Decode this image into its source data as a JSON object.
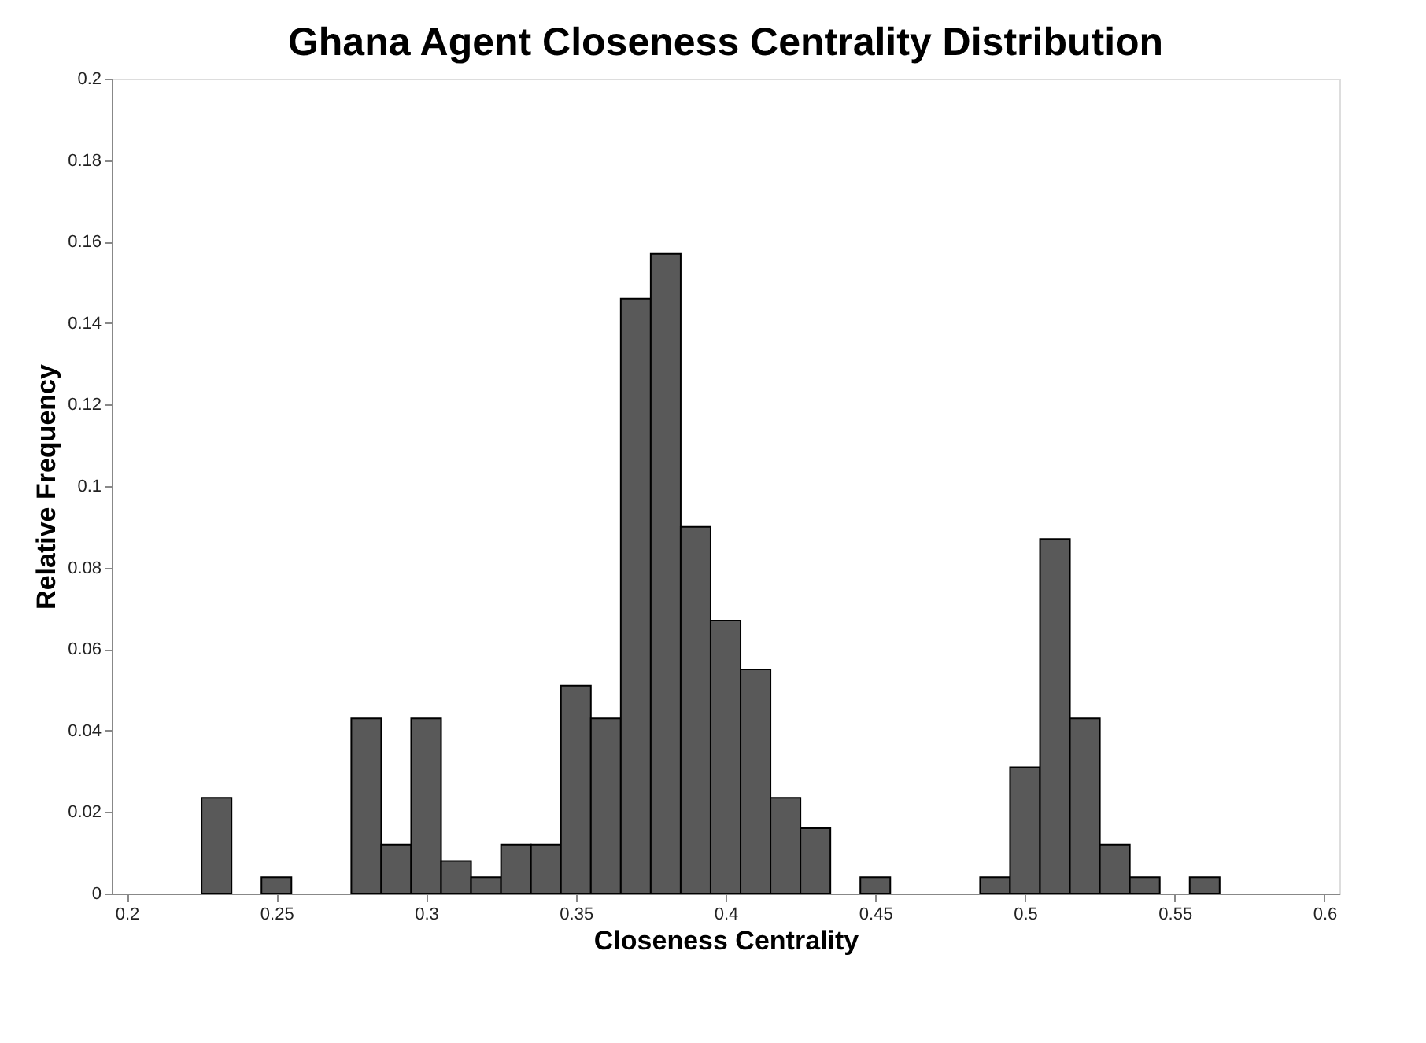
{
  "chart_data": {
    "type": "histogram",
    "title": "Ghana Agent Closeness Centrality Distribution",
    "xlabel": "Closeness Centrality",
    "ylabel": "Relative Frequency",
    "bins": [
      0.195,
      0.205,
      0.215,
      0.225,
      0.235,
      0.245,
      0.255,
      0.265,
      0.275,
      0.285,
      0.295,
      0.305,
      0.315,
      0.325,
      0.335,
      0.345,
      0.355,
      0.365,
      0.375,
      0.385,
      0.395,
      0.405,
      0.415,
      0.425,
      0.435,
      0.445,
      0.455,
      0.465,
      0.475,
      0.485,
      0.495,
      0.505,
      0.515,
      0.525,
      0.535,
      0.545,
      0.555,
      0.565,
      0.575,
      0.585,
      0.595,
      0.605
    ],
    "values": [
      0,
      0,
      0,
      0.0235,
      0,
      0.004,
      0,
      0,
      0.043,
      0.012,
      0.043,
      0.008,
      0.004,
      0.012,
      0.012,
      0.051,
      0.043,
      0.146,
      0.157,
      0.09,
      0.067,
      0.055,
      0.0235,
      0.016,
      0,
      0.004,
      0,
      0,
      0,
      0.004,
      0.031,
      0.087,
      0.043,
      0.012,
      0.004,
      0,
      0.004,
      0,
      0,
      0,
      0
    ],
    "color": "#595959",
    "xlim": [
      0.195,
      0.605
    ],
    "xticks": [
      0.2,
      0.25,
      0.3,
      0.35,
      0.4,
      0.45,
      0.5,
      0.55,
      0.6
    ],
    "ylim": [
      0,
      0.2
    ],
    "yticks": [
      0,
      0.02,
      0.04,
      0.06,
      0.08,
      0.1,
      0.12,
      0.14,
      0.16,
      0.18,
      0.2
    ],
    "grid": false
  }
}
